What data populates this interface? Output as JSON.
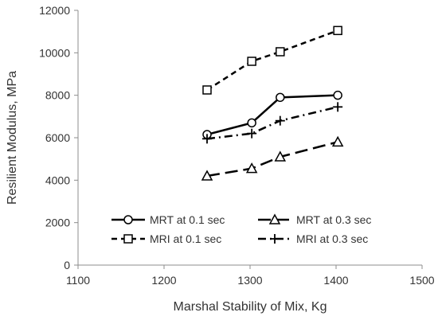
{
  "chart_data": {
    "type": "line",
    "title": "",
    "xlabel": "Marshal Stability of Mix, Kg",
    "ylabel": "Resilient Modulus, MPa",
    "xlim": [
      1100,
      1500
    ],
    "ylim": [
      0,
      12000
    ],
    "xticks": [
      1100,
      1200,
      1300,
      1400,
      1500
    ],
    "yticks": [
      0,
      2000,
      4000,
      6000,
      8000,
      10000,
      12000
    ],
    "grid": false,
    "legend_position": "bottom-center",
    "series": [
      {
        "name": "MRT at 0.1 sec",
        "marker": "circle",
        "line_style": "solid",
        "color": "#000000",
        "x": [
          1250,
          1302,
          1335,
          1402
        ],
        "y": [
          6150,
          6700,
          7900,
          8000
        ]
      },
      {
        "name": "MRT at 0.3 sec",
        "marker": "triangle",
        "line_style": "long-dash",
        "color": "#000000",
        "x": [
          1250,
          1302,
          1335,
          1402
        ],
        "y": [
          4200,
          4550,
          5100,
          5800
        ]
      },
      {
        "name": "MRI at 0.1 sec",
        "marker": "square",
        "line_style": "dash",
        "color": "#000000",
        "x": [
          1250,
          1302,
          1335,
          1402
        ],
        "y": [
          8250,
          9600,
          10050,
          11050
        ]
      },
      {
        "name": "MRI at 0.3 sec",
        "marker": "plus",
        "line_style": "dash-dot",
        "color": "#000000",
        "x": [
          1250,
          1302,
          1335,
          1402
        ],
        "y": [
          5950,
          6200,
          6800,
          7450
        ]
      }
    ]
  }
}
